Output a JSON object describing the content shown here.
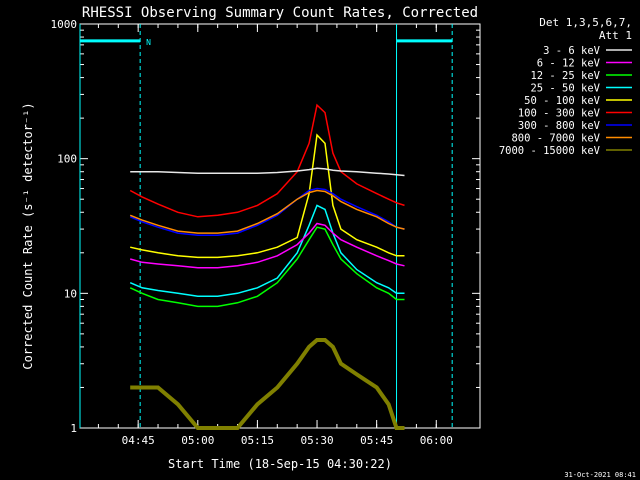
{
  "chart_data": {
    "type": "line",
    "title": "RHESSI Observing Summary Count Rates, Corrected",
    "xlabel": "Start Time (18-Sep-15 04:30:22)",
    "ylabel": "Corrected Count Rate (s⁻¹ detector⁻¹)",
    "yscale": "log",
    "ylim": [
      1,
      1000
    ],
    "xlim": [
      "04:30:22",
      "06:11:00"
    ],
    "x_ticks": [
      "04:45",
      "05:00",
      "05:15",
      "05:30",
      "05:45",
      "06:00"
    ],
    "y_ticks": [
      "1",
      "10",
      "100",
      "1000"
    ],
    "legend_header": [
      "Det 1,3,5,6,7,",
      "Att 1"
    ],
    "legend_position": "outside-right",
    "timestamp": "31-Oct-2021 08:41",
    "flag_marker": "N",
    "x": [
      "04:43",
      "04:46",
      "04:50",
      "04:55",
      "05:00",
      "05:05",
      "05:10",
      "05:15",
      "05:20",
      "05:25",
      "05:28",
      "05:30",
      "05:32",
      "05:34",
      "05:36",
      "05:40",
      "05:45",
      "05:48",
      "05:50",
      "05:52"
    ],
    "series": [
      {
        "name": "3 - 6 keV",
        "color": "#e8e8e8",
        "values": [
          80,
          80,
          80,
          79,
          78,
          78,
          78,
          78,
          79,
          81,
          83,
          85,
          84,
          82,
          81,
          80,
          78,
          77,
          76,
          75
        ]
      },
      {
        "name": "6 - 12 keV",
        "color": "#ff00ff",
        "values": [
          18,
          17,
          16.5,
          16,
          15.5,
          15.5,
          16,
          17,
          19,
          23,
          28,
          33,
          32,
          28,
          25,
          22,
          19,
          17.5,
          16.5,
          16
        ]
      },
      {
        "name": "12 - 25 keV",
        "color": "#00ff00",
        "values": [
          11,
          10,
          9,
          8.5,
          8,
          8,
          8.5,
          9.5,
          12,
          18,
          25,
          31,
          30,
          23,
          18,
          14,
          11,
          10,
          9,
          9
        ]
      },
      {
        "name": "25 - 50 keV",
        "color": "#00ffff",
        "values": [
          12,
          11,
          10.5,
          10,
          9.5,
          9.5,
          10,
          11,
          13,
          20,
          32,
          45,
          42,
          28,
          20,
          15,
          12,
          11,
          10,
          10
        ]
      },
      {
        "name": "50 - 100 keV",
        "color": "#ffff00",
        "values": [
          22,
          21,
          20,
          19,
          18.5,
          18.5,
          19,
          20,
          22,
          26,
          55,
          150,
          130,
          45,
          30,
          25,
          22,
          20,
          19,
          19
        ]
      },
      {
        "name": "100 - 300 keV",
        "color": "#ff0000",
        "values": [
          58,
          52,
          46,
          40,
          37,
          38,
          40,
          45,
          55,
          80,
          130,
          250,
          220,
          110,
          80,
          65,
          55,
          50,
          47,
          45
        ]
      },
      {
        "name": "300 - 800 keV",
        "color": "#0000ff",
        "values": [
          37,
          34,
          31,
          28,
          27,
          27,
          28,
          32,
          38,
          50,
          58,
          60,
          59,
          55,
          50,
          44,
          38,
          34,
          31,
          30
        ]
      },
      {
        "name": "800 - 7000 keV",
        "color": "#ff8c00",
        "values": [
          38,
          35,
          32,
          29,
          28,
          28,
          29,
          33,
          39,
          50,
          56,
          58,
          57,
          53,
          48,
          42,
          37,
          33,
          31,
          30
        ]
      },
      {
        "name": "7000 - 15000 keV",
        "color": "#808000",
        "values": [
          2,
          2,
          2,
          1.5,
          1,
          1,
          1,
          1.5,
          2,
          3,
          4,
          4.5,
          4.5,
          4,
          3,
          2.5,
          2,
          1.5,
          1,
          1
        ]
      }
    ],
    "spans": [
      {
        "start": "04:30:22",
        "end": "04:45:30",
        "color": "#00ffff",
        "level": 750
      },
      {
        "start": "05:50:00",
        "end": "06:04:00",
        "color": "#00ffff",
        "level": 750
      }
    ],
    "vlines": [
      {
        "x": "04:30:22",
        "color": "#00ffff",
        "style": "solid"
      },
      {
        "x": "04:45:30",
        "color": "#00ffff",
        "style": "dashed"
      },
      {
        "x": "05:50:00",
        "color": "#00ffff",
        "style": "solid"
      },
      {
        "x": "06:04:00",
        "color": "#00ffff",
        "style": "dashed"
      }
    ]
  }
}
